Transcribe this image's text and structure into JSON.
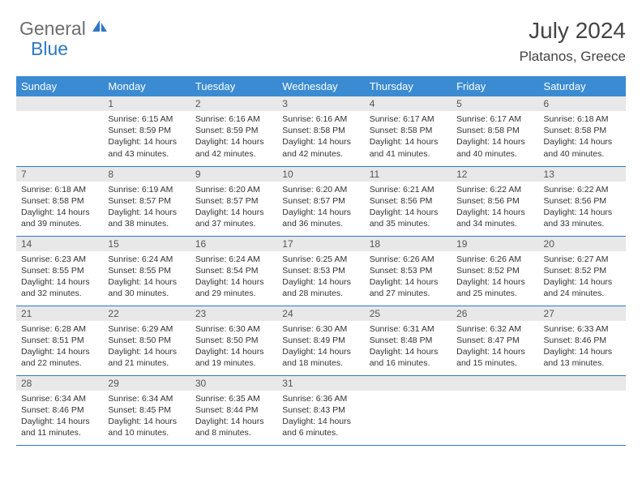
{
  "brand": {
    "part1": "General",
    "part2": "Blue"
  },
  "title": "July 2024",
  "location": "Platanos, Greece",
  "colors": {
    "header_bg": "#3b8bd3",
    "border": "#2f78c3",
    "daynum_bg": "#e8e8e8",
    "text": "#333333",
    "logo_gray": "#6d6d6d",
    "logo_blue": "#2f78c3"
  },
  "weekdays": [
    "Sunday",
    "Monday",
    "Tuesday",
    "Wednesday",
    "Thursday",
    "Friday",
    "Saturday"
  ],
  "weeks": [
    [
      {
        "day": "",
        "sunrise": "",
        "sunset": "",
        "daylight": ""
      },
      {
        "day": "1",
        "sunrise": "6:15 AM",
        "sunset": "8:59 PM",
        "daylight": "14 hours and 43 minutes."
      },
      {
        "day": "2",
        "sunrise": "6:16 AM",
        "sunset": "8:59 PM",
        "daylight": "14 hours and 42 minutes."
      },
      {
        "day": "3",
        "sunrise": "6:16 AM",
        "sunset": "8:58 PM",
        "daylight": "14 hours and 42 minutes."
      },
      {
        "day": "4",
        "sunrise": "6:17 AM",
        "sunset": "8:58 PM",
        "daylight": "14 hours and 41 minutes."
      },
      {
        "day": "5",
        "sunrise": "6:17 AM",
        "sunset": "8:58 PM",
        "daylight": "14 hours and 40 minutes."
      },
      {
        "day": "6",
        "sunrise": "6:18 AM",
        "sunset": "8:58 PM",
        "daylight": "14 hours and 40 minutes."
      }
    ],
    [
      {
        "day": "7",
        "sunrise": "6:18 AM",
        "sunset": "8:58 PM",
        "daylight": "14 hours and 39 minutes."
      },
      {
        "day": "8",
        "sunrise": "6:19 AM",
        "sunset": "8:57 PM",
        "daylight": "14 hours and 38 minutes."
      },
      {
        "day": "9",
        "sunrise": "6:20 AM",
        "sunset": "8:57 PM",
        "daylight": "14 hours and 37 minutes."
      },
      {
        "day": "10",
        "sunrise": "6:20 AM",
        "sunset": "8:57 PM",
        "daylight": "14 hours and 36 minutes."
      },
      {
        "day": "11",
        "sunrise": "6:21 AM",
        "sunset": "8:56 PM",
        "daylight": "14 hours and 35 minutes."
      },
      {
        "day": "12",
        "sunrise": "6:22 AM",
        "sunset": "8:56 PM",
        "daylight": "14 hours and 34 minutes."
      },
      {
        "day": "13",
        "sunrise": "6:22 AM",
        "sunset": "8:56 PM",
        "daylight": "14 hours and 33 minutes."
      }
    ],
    [
      {
        "day": "14",
        "sunrise": "6:23 AM",
        "sunset": "8:55 PM",
        "daylight": "14 hours and 32 minutes."
      },
      {
        "day": "15",
        "sunrise": "6:24 AM",
        "sunset": "8:55 PM",
        "daylight": "14 hours and 30 minutes."
      },
      {
        "day": "16",
        "sunrise": "6:24 AM",
        "sunset": "8:54 PM",
        "daylight": "14 hours and 29 minutes."
      },
      {
        "day": "17",
        "sunrise": "6:25 AM",
        "sunset": "8:53 PM",
        "daylight": "14 hours and 28 minutes."
      },
      {
        "day": "18",
        "sunrise": "6:26 AM",
        "sunset": "8:53 PM",
        "daylight": "14 hours and 27 minutes."
      },
      {
        "day": "19",
        "sunrise": "6:26 AM",
        "sunset": "8:52 PM",
        "daylight": "14 hours and 25 minutes."
      },
      {
        "day": "20",
        "sunrise": "6:27 AM",
        "sunset": "8:52 PM",
        "daylight": "14 hours and 24 minutes."
      }
    ],
    [
      {
        "day": "21",
        "sunrise": "6:28 AM",
        "sunset": "8:51 PM",
        "daylight": "14 hours and 22 minutes."
      },
      {
        "day": "22",
        "sunrise": "6:29 AM",
        "sunset": "8:50 PM",
        "daylight": "14 hours and 21 minutes."
      },
      {
        "day": "23",
        "sunrise": "6:30 AM",
        "sunset": "8:50 PM",
        "daylight": "14 hours and 19 minutes."
      },
      {
        "day": "24",
        "sunrise": "6:30 AM",
        "sunset": "8:49 PM",
        "daylight": "14 hours and 18 minutes."
      },
      {
        "day": "25",
        "sunrise": "6:31 AM",
        "sunset": "8:48 PM",
        "daylight": "14 hours and 16 minutes."
      },
      {
        "day": "26",
        "sunrise": "6:32 AM",
        "sunset": "8:47 PM",
        "daylight": "14 hours and 15 minutes."
      },
      {
        "day": "27",
        "sunrise": "6:33 AM",
        "sunset": "8:46 PM",
        "daylight": "14 hours and 13 minutes."
      }
    ],
    [
      {
        "day": "28",
        "sunrise": "6:34 AM",
        "sunset": "8:46 PM",
        "daylight": "14 hours and 11 minutes."
      },
      {
        "day": "29",
        "sunrise": "6:34 AM",
        "sunset": "8:45 PM",
        "daylight": "14 hours and 10 minutes."
      },
      {
        "day": "30",
        "sunrise": "6:35 AM",
        "sunset": "8:44 PM",
        "daylight": "14 hours and 8 minutes."
      },
      {
        "day": "31",
        "sunrise": "6:36 AM",
        "sunset": "8:43 PM",
        "daylight": "14 hours and 6 minutes."
      },
      {
        "day": "",
        "sunrise": "",
        "sunset": "",
        "daylight": ""
      },
      {
        "day": "",
        "sunrise": "",
        "sunset": "",
        "daylight": ""
      },
      {
        "day": "",
        "sunrise": "",
        "sunset": "",
        "daylight": ""
      }
    ]
  ],
  "labels": {
    "sunrise": "Sunrise: ",
    "sunset": "Sunset: ",
    "daylight": "Daylight: "
  }
}
